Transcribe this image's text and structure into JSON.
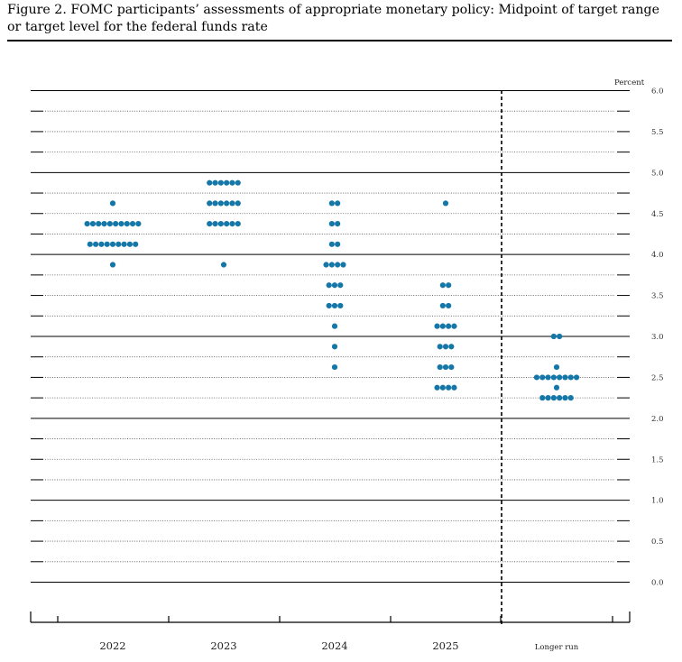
{
  "title": "Figure 2.  FOMC participants’ assessments of appropriate monetary policy: Midpoint of target range or target level for the federal funds rate",
  "chart_data": {
    "type": "scatter",
    "style": "dot-plot",
    "ylabel": "Percent",
    "ylim": [
      0,
      6
    ],
    "yticks": [
      "0.0",
      "0.5",
      "1.0",
      "1.5",
      "2.0",
      "2.5",
      "3.0",
      "3.5",
      "4.0",
      "4.5",
      "5.0",
      "5.5",
      "6.0"
    ],
    "grid": true,
    "categories": [
      "2022",
      "2023",
      "2024",
      "2025",
      "Longer run"
    ],
    "dot_color": "#1477a8",
    "separator_before": "Longer run",
    "dots": [
      {
        "category": "2022",
        "rates": [
          {
            "y": 4.625,
            "n": 1
          },
          {
            "y": 4.375,
            "n": 10
          },
          {
            "y": 4.125,
            "n": 9
          },
          {
            "y": 3.875,
            "n": 1
          }
        ]
      },
      {
        "category": "2023",
        "rates": [
          {
            "y": 4.875,
            "n": 6
          },
          {
            "y": 4.625,
            "n": 6
          },
          {
            "y": 4.375,
            "n": 6
          },
          {
            "y": 3.875,
            "n": 1
          }
        ]
      },
      {
        "category": "2024",
        "rates": [
          {
            "y": 4.625,
            "n": 2
          },
          {
            "y": 4.375,
            "n": 2
          },
          {
            "y": 4.125,
            "n": 2
          },
          {
            "y": 3.875,
            "n": 4
          },
          {
            "y": 3.625,
            "n": 3
          },
          {
            "y": 3.375,
            "n": 3
          },
          {
            "y": 3.125,
            "n": 1
          },
          {
            "y": 2.875,
            "n": 1
          },
          {
            "y": 2.625,
            "n": 1
          }
        ]
      },
      {
        "category": "2025",
        "rates": [
          {
            "y": 4.625,
            "n": 1
          },
          {
            "y": 3.625,
            "n": 2
          },
          {
            "y": 3.375,
            "n": 2
          },
          {
            "y": 3.125,
            "n": 4
          },
          {
            "y": 2.875,
            "n": 3
          },
          {
            "y": 2.625,
            "n": 3
          },
          {
            "y": 2.375,
            "n": 4
          }
        ]
      },
      {
        "category": "Longer run",
        "rates": [
          {
            "y": 3.0,
            "n": 2
          },
          {
            "y": 2.625,
            "n": 1
          },
          {
            "y": 2.5,
            "n": 8
          },
          {
            "y": 2.375,
            "n": 1
          },
          {
            "y": 2.25,
            "n": 6
          }
        ]
      }
    ]
  }
}
